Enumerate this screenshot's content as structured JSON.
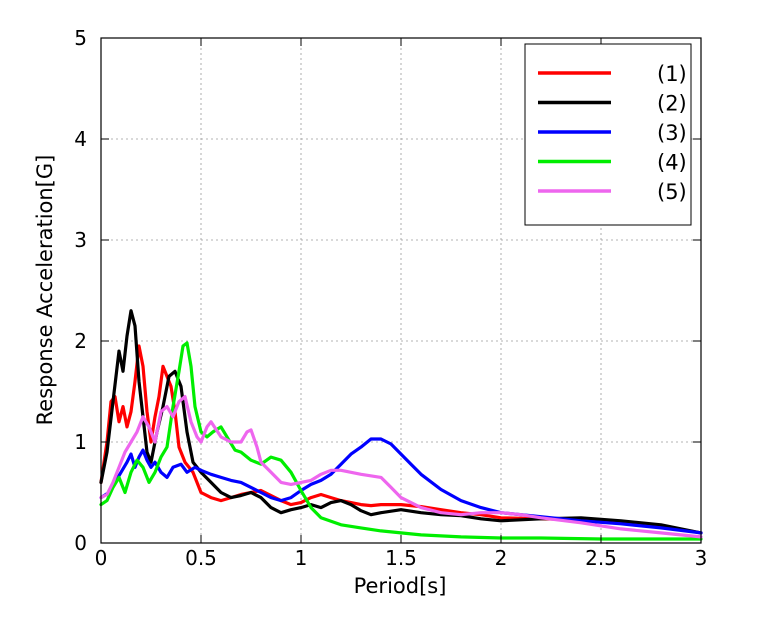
{
  "chart_data": {
    "type": "line",
    "title": "",
    "xlabel": "Period[s]",
    "ylabel": "Response Acceleration[G]",
    "xlim": [
      0,
      3
    ],
    "ylim": [
      0,
      5
    ],
    "xticks": [
      "0",
      "0.5",
      "1",
      "1.5",
      "2",
      "2.5",
      "3"
    ],
    "yticks": [
      "0",
      "1",
      "2",
      "3",
      "4",
      "5"
    ],
    "grid": true,
    "legend_position": "top-right",
    "series": [
      {
        "name": "(1)",
        "color": "#ff0000",
        "x": [
          0,
          0.03,
          0.05,
          0.07,
          0.09,
          0.11,
          0.13,
          0.15,
          0.17,
          0.19,
          0.21,
          0.23,
          0.25,
          0.27,
          0.29,
          0.31,
          0.33,
          0.35,
          0.37,
          0.39,
          0.42,
          0.46,
          0.5,
          0.55,
          0.6,
          0.65,
          0.7,
          0.75,
          0.8,
          0.85,
          0.9,
          0.95,
          1.0,
          1.05,
          1.1,
          1.15,
          1.2,
          1.25,
          1.3,
          1.35,
          1.4,
          1.5,
          1.6,
          1.7,
          1.8,
          1.9,
          2.0,
          2.2,
          2.4,
          2.6,
          2.8,
          3.0
        ],
        "y": [
          0.6,
          1.0,
          1.4,
          1.45,
          1.2,
          1.35,
          1.15,
          1.3,
          1.6,
          1.95,
          1.75,
          1.3,
          1.0,
          1.25,
          1.45,
          1.75,
          1.65,
          1.55,
          1.3,
          0.95,
          0.8,
          0.7,
          0.5,
          0.45,
          0.42,
          0.45,
          0.48,
          0.5,
          0.52,
          0.47,
          0.42,
          0.38,
          0.4,
          0.45,
          0.48,
          0.45,
          0.42,
          0.4,
          0.38,
          0.37,
          0.38,
          0.38,
          0.36,
          0.33,
          0.3,
          0.28,
          0.25,
          0.24,
          0.23,
          0.21,
          0.17,
          0.1
        ]
      },
      {
        "name": "(2)",
        "color": "#000000",
        "x": [
          0,
          0.03,
          0.06,
          0.09,
          0.11,
          0.13,
          0.15,
          0.17,
          0.19,
          0.21,
          0.23,
          0.25,
          0.28,
          0.31,
          0.34,
          0.37,
          0.4,
          0.43,
          0.46,
          0.5,
          0.55,
          0.6,
          0.65,
          0.7,
          0.75,
          0.8,
          0.85,
          0.9,
          0.95,
          1.0,
          1.05,
          1.1,
          1.15,
          1.2,
          1.25,
          1.3,
          1.35,
          1.4,
          1.5,
          1.6,
          1.7,
          1.8,
          1.9,
          2.0,
          2.2,
          2.4,
          2.6,
          2.8,
          3.0
        ],
        "y": [
          0.6,
          0.9,
          1.4,
          1.9,
          1.7,
          2.05,
          2.3,
          2.15,
          1.6,
          1.25,
          0.9,
          0.8,
          1.1,
          1.35,
          1.65,
          1.7,
          1.55,
          1.1,
          0.8,
          0.7,
          0.6,
          0.5,
          0.45,
          0.47,
          0.5,
          0.45,
          0.35,
          0.3,
          0.33,
          0.35,
          0.38,
          0.35,
          0.4,
          0.42,
          0.38,
          0.32,
          0.28,
          0.3,
          0.33,
          0.3,
          0.28,
          0.27,
          0.24,
          0.22,
          0.24,
          0.25,
          0.22,
          0.18,
          0.1
        ]
      },
      {
        "name": "(3)",
        "color": "#0000ff",
        "x": [
          0,
          0.04,
          0.07,
          0.1,
          0.13,
          0.15,
          0.17,
          0.19,
          0.21,
          0.23,
          0.25,
          0.27,
          0.3,
          0.33,
          0.36,
          0.4,
          0.43,
          0.47,
          0.5,
          0.55,
          0.6,
          0.65,
          0.7,
          0.75,
          0.8,
          0.85,
          0.9,
          0.95,
          1.0,
          1.05,
          1.1,
          1.15,
          1.2,
          1.25,
          1.3,
          1.35,
          1.4,
          1.45,
          1.5,
          1.55,
          1.6,
          1.7,
          1.8,
          1.9,
          2.0,
          2.2,
          2.4,
          2.6,
          2.8,
          3.0
        ],
        "y": [
          0.45,
          0.5,
          0.6,
          0.7,
          0.8,
          0.88,
          0.75,
          0.85,
          0.92,
          0.82,
          0.75,
          0.8,
          0.7,
          0.65,
          0.75,
          0.78,
          0.7,
          0.75,
          0.72,
          0.68,
          0.65,
          0.62,
          0.6,
          0.55,
          0.5,
          0.45,
          0.42,
          0.45,
          0.52,
          0.58,
          0.62,
          0.68,
          0.78,
          0.88,
          0.95,
          1.03,
          1.03,
          0.98,
          0.88,
          0.78,
          0.68,
          0.53,
          0.42,
          0.35,
          0.3,
          0.26,
          0.22,
          0.19,
          0.15,
          0.1
        ]
      },
      {
        "name": "(4)",
        "color": "#00ee00",
        "x": [
          0,
          0.03,
          0.06,
          0.09,
          0.12,
          0.15,
          0.18,
          0.21,
          0.24,
          0.27,
          0.3,
          0.33,
          0.36,
          0.39,
          0.41,
          0.43,
          0.45,
          0.47,
          0.5,
          0.53,
          0.56,
          0.6,
          0.63,
          0.67,
          0.7,
          0.75,
          0.8,
          0.85,
          0.9,
          0.95,
          1.0,
          1.05,
          1.1,
          1.2,
          1.3,
          1.4,
          1.5,
          1.6,
          1.8,
          2.0,
          2.2,
          2.5,
          2.8,
          3.0
        ],
        "y": [
          0.38,
          0.42,
          0.55,
          0.65,
          0.5,
          0.7,
          0.82,
          0.75,
          0.6,
          0.7,
          0.85,
          0.95,
          1.35,
          1.7,
          1.95,
          1.98,
          1.75,
          1.35,
          1.1,
          1.05,
          1.1,
          1.15,
          1.05,
          0.92,
          0.9,
          0.82,
          0.78,
          0.85,
          0.82,
          0.7,
          0.52,
          0.35,
          0.25,
          0.18,
          0.15,
          0.12,
          0.1,
          0.08,
          0.06,
          0.05,
          0.05,
          0.04,
          0.04,
          0.04
        ]
      },
      {
        "name": "(5)",
        "color": "#ee66ee",
        "x": [
          0,
          0.03,
          0.06,
          0.09,
          0.12,
          0.15,
          0.18,
          0.21,
          0.24,
          0.27,
          0.3,
          0.33,
          0.36,
          0.39,
          0.42,
          0.45,
          0.48,
          0.5,
          0.53,
          0.55,
          0.6,
          0.65,
          0.7,
          0.73,
          0.75,
          0.78,
          0.8,
          0.85,
          0.9,
          0.95,
          1.0,
          1.05,
          1.1,
          1.15,
          1.2,
          1.3,
          1.4,
          1.45,
          1.5,
          1.6,
          1.7,
          1.8,
          1.9,
          2.0,
          2.1,
          2.2,
          2.4,
          2.6,
          2.8,
          3.0
        ],
        "y": [
          0.45,
          0.48,
          0.6,
          0.75,
          0.9,
          1.0,
          1.1,
          1.25,
          1.15,
          1.0,
          1.3,
          1.35,
          1.25,
          1.4,
          1.45,
          1.2,
          1.05,
          1.0,
          1.15,
          1.2,
          1.05,
          1.0,
          1.0,
          1.1,
          1.12,
          0.95,
          0.8,
          0.7,
          0.6,
          0.58,
          0.6,
          0.62,
          0.68,
          0.72,
          0.72,
          0.68,
          0.65,
          0.55,
          0.45,
          0.35,
          0.3,
          0.28,
          0.3,
          0.3,
          0.28,
          0.25,
          0.2,
          0.14,
          0.1,
          0.06
        ]
      }
    ]
  }
}
